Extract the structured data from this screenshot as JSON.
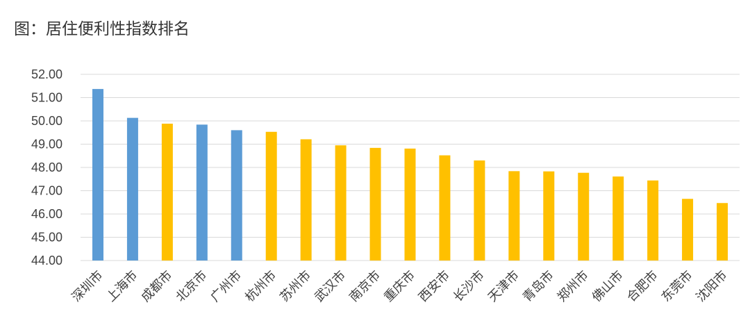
{
  "title": "图：居住便利性指数排名",
  "colors": {
    "highlight": "#5b9bd5",
    "default": "#ffc000",
    "grid": "#d9d9d9"
  },
  "chart_data": {
    "type": "bar",
    "title": "图：居住便利性指数排名",
    "xlabel": "",
    "ylabel": "",
    "ylim": [
      44,
      52
    ],
    "yticks": [
      "44.00",
      "45.00",
      "46.00",
      "47.00",
      "48.00",
      "49.00",
      "50.00",
      "51.00",
      "52.00"
    ],
    "grid": true,
    "legend": "none",
    "categories": [
      "深圳市",
      "上海市",
      "成都市",
      "北京市",
      "广州市",
      "杭州市",
      "苏州市",
      "武汉市",
      "南京市",
      "重庆市",
      "西安市",
      "长沙市",
      "天津市",
      "青岛市",
      "郑州市",
      "佛山市",
      "合肥市",
      "东莞市",
      "沈阳市"
    ],
    "values": [
      51.37,
      50.13,
      49.88,
      49.84,
      49.6,
      49.53,
      49.21,
      48.95,
      48.84,
      48.81,
      48.52,
      48.3,
      47.84,
      47.83,
      47.77,
      47.61,
      47.44,
      46.65,
      46.47
    ],
    "bar_colors": [
      "#5b9bd5",
      "#5b9bd5",
      "#ffc000",
      "#5b9bd5",
      "#5b9bd5",
      "#ffc000",
      "#ffc000",
      "#ffc000",
      "#ffc000",
      "#ffc000",
      "#ffc000",
      "#ffc000",
      "#ffc000",
      "#ffc000",
      "#ffc000",
      "#ffc000",
      "#ffc000",
      "#ffc000",
      "#ffc000"
    ]
  }
}
